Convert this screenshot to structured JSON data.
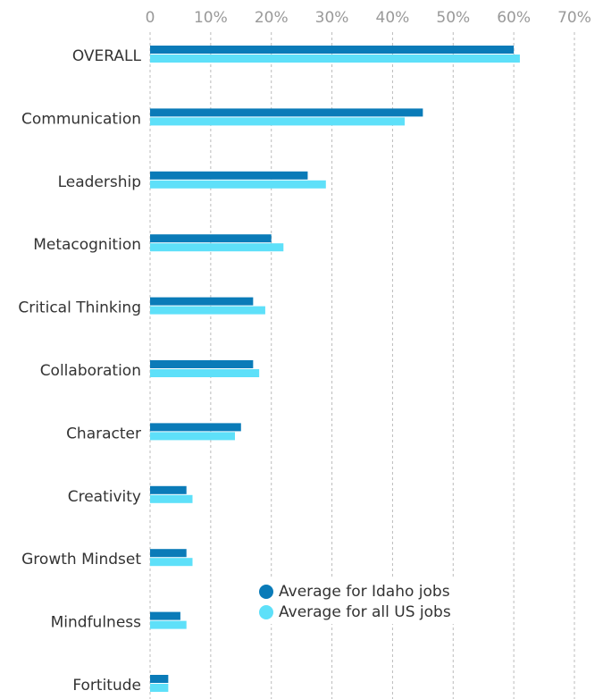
{
  "chart_data": {
    "type": "bar",
    "orientation": "horizontal",
    "categories": [
      "OVERALL",
      "Communication",
      "Leadership",
      "Metacognition",
      "Critical Thinking",
      "Collaboration",
      "Character",
      "Creativity",
      "Growth Mindset",
      "Mindfulness",
      "Fortitude"
    ],
    "series": [
      {
        "name": "Average for Idaho jobs",
        "color": "#0a7bb8",
        "values": [
          60,
          45,
          26,
          20,
          17,
          17,
          15,
          6,
          6,
          5,
          3
        ]
      },
      {
        "name": "Average for all US jobs",
        "color": "#5ee0f9",
        "values": [
          61,
          42,
          29,
          22,
          19,
          18,
          14,
          7,
          7,
          6,
          3
        ]
      }
    ],
    "xlim": [
      0,
      70
    ],
    "xticks": [
      0,
      {
        "value": 10,
        "label": "10%"
      },
      {
        "value": 20,
        "label": "20%"
      },
      {
        "value": 30,
        "label": "30%"
      },
      {
        "value": 40,
        "label": "40%"
      },
      {
        "value": 50,
        "label": "50%"
      },
      {
        "value": 60,
        "label": "60%"
      },
      {
        "value": 70,
        "label": "70%"
      }
    ],
    "grid": true,
    "legend": "lower center"
  }
}
